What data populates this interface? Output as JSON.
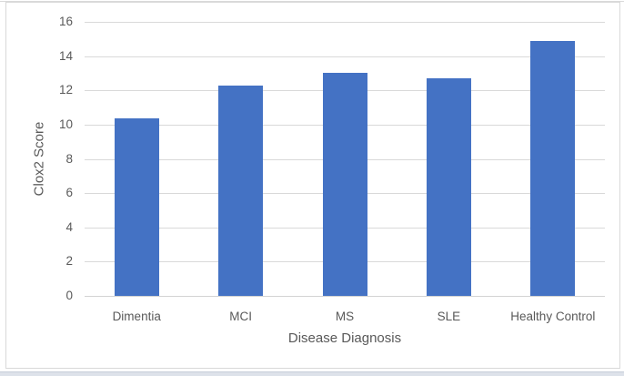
{
  "chart_data": {
    "type": "bar",
    "categories": [
      "Dimentia",
      "MCI",
      "MS",
      "SLE",
      "Healthy Control"
    ],
    "values": [
      10.35,
      12.3,
      13.0,
      12.7,
      14.9
    ],
    "title": "",
    "xlabel": "Disease Diagnosis",
    "ylabel": "Clox2 Score",
    "ylim": [
      0,
      16
    ],
    "yticks": [
      0,
      2,
      4,
      6,
      8,
      10,
      12,
      14,
      16
    ],
    "grid": true,
    "legend": false,
    "bar_color": "#4472C4",
    "gridline_color": "#D9D9D9",
    "axis_line_color": "#D3D3D3",
    "text_color": "#595959",
    "frame_border_color": "#D9D9D9"
  }
}
